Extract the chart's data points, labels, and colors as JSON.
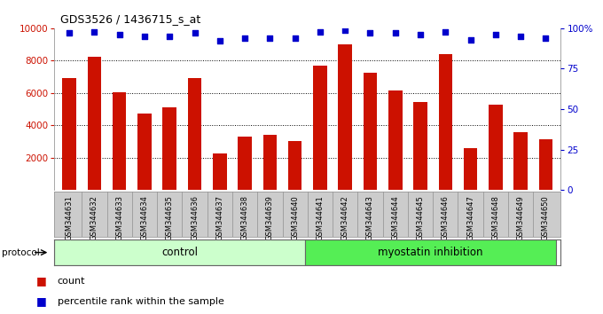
{
  "title": "GDS3526 / 1436715_s_at",
  "samples": [
    "GSM344631",
    "GSM344632",
    "GSM344633",
    "GSM344634",
    "GSM344635",
    "GSM344636",
    "GSM344637",
    "GSM344638",
    "GSM344639",
    "GSM344640",
    "GSM344641",
    "GSM344642",
    "GSM344643",
    "GSM344644",
    "GSM344645",
    "GSM344646",
    "GSM344647",
    "GSM344648",
    "GSM344649",
    "GSM344650"
  ],
  "counts": [
    6900,
    8250,
    6050,
    4750,
    5100,
    6900,
    2250,
    3300,
    3400,
    3050,
    7700,
    9000,
    7250,
    6150,
    5450,
    8400,
    2600,
    5250,
    3600,
    3150
  ],
  "percentiles": [
    97,
    98,
    96,
    95,
    95,
    97,
    92,
    94,
    94,
    94,
    98,
    99,
    97,
    97,
    96,
    98,
    93,
    96,
    95,
    94
  ],
  "bar_color": "#CC1100",
  "dot_color": "#0000CC",
  "ylim_left": [
    0,
    10000
  ],
  "ylim_right": [
    0,
    100
  ],
  "yticks_left": [
    2000,
    4000,
    6000,
    8000,
    10000
  ],
  "yticks_right": [
    0,
    25,
    50,
    75,
    100
  ],
  "control_samples": 10,
  "control_label": "control",
  "treatment_label": "myostatin inhibition",
  "protocol_label": "protocol",
  "legend_count": "count",
  "legend_pct": "percentile rank within the sample",
  "bar_width": 0.55,
  "control_color": "#CCFFCC",
  "treatment_color": "#55EE55",
  "xtick_bg": "#CCCCCC",
  "bar_bottom": 0
}
